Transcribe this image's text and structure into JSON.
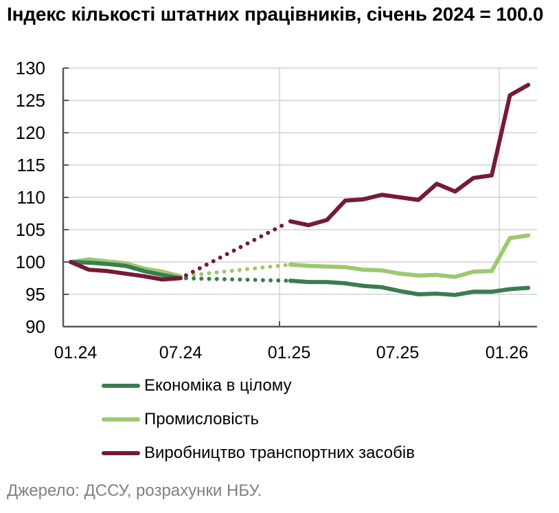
{
  "title": "Індекс кількості штатних працівників, січень 2024 = 100.0",
  "source": "Джерело: ДССУ, розрахунки НБУ.",
  "colors": {
    "economy": "#3a7d50",
    "industry": "#9cc96e",
    "transport": "#761b35",
    "grid": "#d0d0d0",
    "axis": "#555555"
  },
  "legend": [
    {
      "label": "Економіка в цілому",
      "color": "#3a7d50"
    },
    {
      "label": "Промисловість",
      "color": "#9cc96e"
    },
    {
      "label": "Виробництво транспортних засобів",
      "color": "#761b35"
    }
  ],
  "chart_data": {
    "type": "line",
    "title": "Індекс кількості штатних працівників, січень 2024 = 100.0",
    "xlabel": "",
    "ylabel": "",
    "ylim": [
      90,
      130
    ],
    "yticks": [
      90,
      95,
      100,
      105,
      110,
      115,
      120,
      125,
      130
    ],
    "xtick_labels": [
      "01.24",
      "07.24",
      "01.25",
      "07.25",
      "01.26"
    ],
    "grid": true,
    "legend_position": "bottom",
    "x": [
      "01.24",
      "02.24",
      "03.24",
      "04.24",
      "05.24",
      "06.24",
      "07.24",
      "08.24",
      "09.24",
      "10.24",
      "11.24",
      "12.24",
      "01.25",
      "02.25",
      "03.25",
      "04.25",
      "05.25",
      "06.25",
      "07.25",
      "08.25",
      "09.25",
      "10.25",
      "11.25",
      "12.25",
      "01.26",
      "02.26"
    ],
    "note": "Values for 08.24–12.24 not shown (dotted interpolation between 07.24 and 01.25)",
    "series": [
      {
        "name": "Економіка в цілому",
        "color": "#3a7d50",
        "values": [
          100.0,
          99.9,
          99.7,
          99.4,
          98.6,
          98.0,
          97.5,
          null,
          null,
          null,
          null,
          null,
          97.1,
          96.9,
          96.9,
          96.7,
          96.3,
          96.1,
          95.5,
          95.0,
          95.1,
          94.9,
          95.4,
          95.4,
          95.8,
          96.0
        ]
      },
      {
        "name": "Промисловість",
        "color": "#9cc96e",
        "values": [
          100.0,
          100.4,
          100.1,
          99.8,
          99.0,
          98.5,
          97.8,
          null,
          null,
          null,
          null,
          null,
          99.6,
          99.4,
          99.3,
          99.2,
          98.8,
          98.7,
          98.2,
          97.9,
          98.0,
          97.7,
          98.5,
          98.6,
          103.7,
          104.1
        ]
      },
      {
        "name": "Виробництво транспортних засобів",
        "color": "#761b35",
        "values": [
          100.0,
          98.8,
          98.6,
          98.2,
          97.8,
          97.3,
          97.5,
          null,
          null,
          null,
          null,
          null,
          106.3,
          105.7,
          106.5,
          109.5,
          109.7,
          110.4,
          110.0,
          109.6,
          112.1,
          110.9,
          113.0,
          113.4,
          125.8,
          127.4
        ]
      }
    ]
  }
}
